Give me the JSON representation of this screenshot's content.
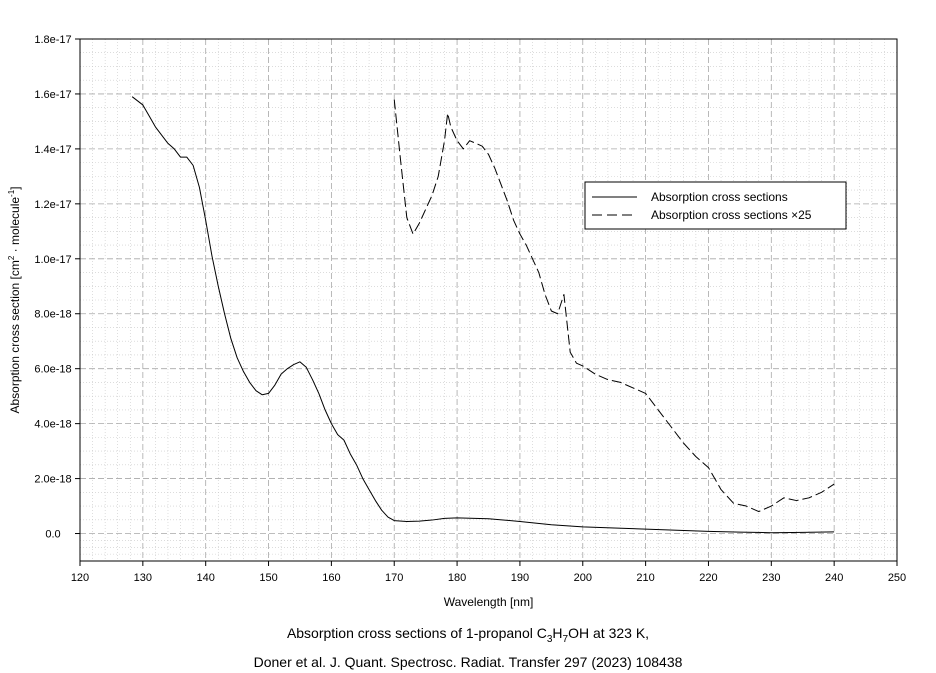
{
  "chart_data": {
    "type": "line",
    "title": "",
    "xlabel": "Wavelength [nm]",
    "ylabel_parts": [
      "Absorption cross section [cm",
      "2",
      " · molecule",
      "-1",
      "]"
    ],
    "xlim": [
      120,
      250
    ],
    "ylim": [
      -1e-18,
      1.8e-17
    ],
    "x_ticks": [
      120,
      130,
      140,
      150,
      160,
      170,
      180,
      190,
      200,
      210,
      220,
      230,
      240,
      250
    ],
    "x_tick_labels": [
      "120",
      "130",
      "140",
      "150",
      "160",
      "170",
      "180",
      "190",
      "200",
      "210",
      "220",
      "230",
      "240",
      "250"
    ],
    "y_ticks": [
      0,
      2e-18,
      4e-18,
      6e-18,
      8e-18,
      1e-17,
      1.2e-17,
      1.4e-17,
      1.6e-17,
      1.8e-17
    ],
    "y_tick_labels": [
      "0.0",
      "2.0e-18",
      "4.0e-18",
      "6.0e-18",
      "8.0e-18",
      "1.0e-17",
      "1.2e-17",
      "1.4e-17",
      "1.6e-17",
      "1.8e-17"
    ],
    "grid": true,
    "legend_position": "upper-right",
    "series": [
      {
        "name": "Absorption cross sections",
        "style": "solid",
        "color": "#000000",
        "x": [
          128.3,
          130,
          131,
          132,
          133,
          134,
          135,
          136,
          137,
          138,
          139,
          140,
          141,
          142,
          143,
          144,
          145,
          146,
          147,
          148,
          149,
          150,
          151,
          152,
          153,
          154,
          155,
          156,
          157,
          158,
          159,
          160,
          161,
          162,
          163,
          164,
          165,
          166,
          167,
          168,
          169,
          170,
          172,
          174,
          176,
          178,
          180,
          185,
          190,
          195,
          200,
          205,
          210,
          215,
          220,
          225,
          230,
          235,
          240
        ],
        "y": [
          1.59e-17,
          1.56e-17,
          1.52e-17,
          1.48e-17,
          1.45e-17,
          1.42e-17,
          1.4e-17,
          1.37e-17,
          1.37e-17,
          1.34e-17,
          1.26e-17,
          1.14e-17,
          1.01e-17,
          9e-18,
          8e-18,
          7.1e-18,
          6.4e-18,
          5.9e-18,
          5.5e-18,
          5.2e-18,
          5.05e-18,
          5.1e-18,
          5.4e-18,
          5.8e-18,
          6e-18,
          6.15e-18,
          6.25e-18,
          6.05e-18,
          5.6e-18,
          5.1e-18,
          4.5e-18,
          4e-18,
          3.6e-18,
          3.4e-18,
          2.9e-18,
          2.5e-18,
          2e-18,
          1.6e-18,
          1.2e-18,
          8.5e-19,
          6e-19,
          4.7e-19,
          4.4e-19,
          4.5e-19,
          4.9e-19,
          5.5e-19,
          5.7e-19,
          5.4e-19,
          4.4e-19,
          3.2e-19,
          2.4e-19,
          2e-19,
          1.6e-19,
          1.2e-19,
          8e-20,
          5e-20,
          3e-20,
          4e-20,
          6e-20
        ]
      },
      {
        "name": "Absorption cross sections ×25",
        "style": "dashed",
        "color": "#000000",
        "x": [
          170,
          171,
          172,
          173,
          174,
          175,
          176,
          177,
          178,
          178.5,
          179,
          180,
          181,
          182,
          183,
          184,
          185,
          186,
          187,
          188,
          189,
          190,
          191,
          192,
          193,
          194,
          195,
          196,
          197,
          198,
          199,
          200,
          202,
          204,
          206,
          208,
          210,
          212,
          214,
          216,
          218,
          220,
          222,
          224,
          226,
          228,
          230,
          232,
          234,
          236,
          238,
          240
        ],
        "y": [
          1.58e-17,
          1.36e-17,
          1.15e-17,
          1.09e-17,
          1.13e-17,
          1.18e-17,
          1.23e-17,
          1.3e-17,
          1.43e-17,
          1.53e-17,
          1.48e-17,
          1.43e-17,
          1.4e-17,
          1.43e-17,
          1.42e-17,
          1.41e-17,
          1.38e-17,
          1.33e-17,
          1.27e-17,
          1.21e-17,
          1.14e-17,
          1.09e-17,
          1.05e-17,
          1e-17,
          9.5e-18,
          8.7e-18,
          8.1e-18,
          8e-18,
          8.7e-18,
          6.6e-18,
          6.2e-18,
          6.1e-18,
          5.8e-18,
          5.6e-18,
          5.5e-18,
          5.3e-18,
          5.1e-18,
          4.5e-18,
          3.9e-18,
          3.3e-18,
          2.8e-18,
          2.4e-18,
          1.6e-18,
          1.1e-18,
          1e-18,
          8e-19,
          1e-18,
          1.3e-18,
          1.2e-18,
          1.3e-18,
          1.5e-18,
          1.8e-18
        ]
      }
    ]
  },
  "caption": {
    "line1_parts": [
      "Absorption cross sections of 1-propanol C",
      "3",
      "H",
      "7",
      "OH at 323 K,"
    ],
    "line2": "Doner et al. J. Quant. Spectrosc. Radiat. Transfer 297 (2023) 108438"
  }
}
